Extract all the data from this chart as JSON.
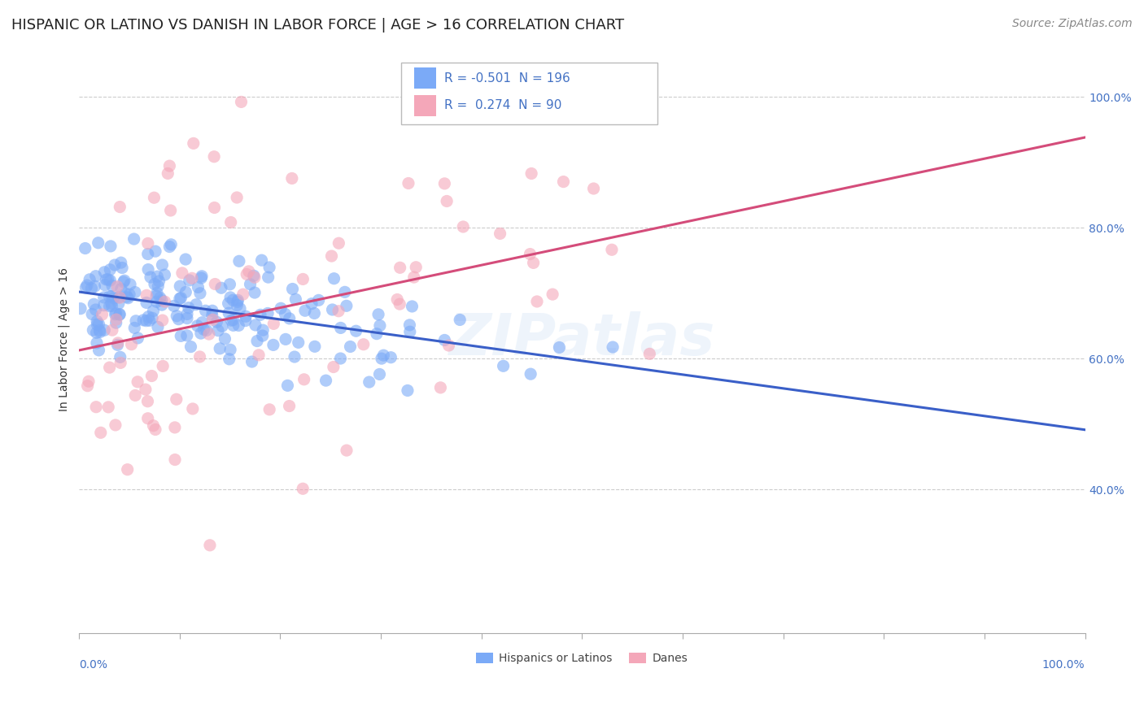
{
  "title": "HISPANIC OR LATINO VS DANISH IN LABOR FORCE | AGE > 16 CORRELATION CHART",
  "source": "Source: ZipAtlas.com",
  "ylabel": "In Labor Force | Age > 16",
  "legend_entries": [
    {
      "label": "Hispanics or Latinos",
      "R": -0.501,
      "N": 196,
      "color": "#7baaf7",
      "line_color": "#3a5fc8"
    },
    {
      "label": "Danes",
      "R": 0.274,
      "N": 90,
      "color": "#f4a7b9",
      "line_color": "#d44c7a"
    }
  ],
  "ytick_values": [
    0.4,
    0.6,
    0.8,
    1.0
  ],
  "xlim": [
    0.0,
    1.0
  ],
  "ylim": [
    0.18,
    1.08
  ],
  "background_color": "#ffffff",
  "grid_color": "#cccccc",
  "title_fontsize": 13,
  "source_fontsize": 10,
  "seed_hispanic": 12,
  "seed_danish": 99
}
